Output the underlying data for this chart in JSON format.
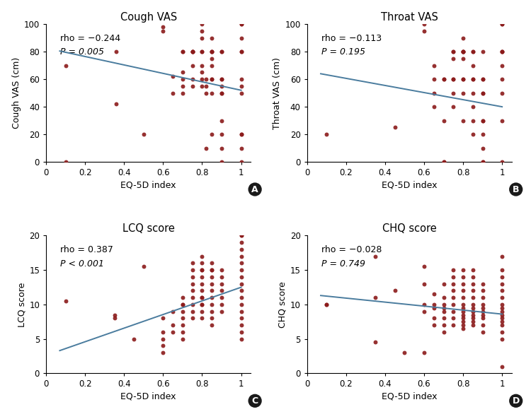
{
  "plots": [
    {
      "title": "Cough VAS",
      "xlabel": "EQ-5D index",
      "ylabel": "Cough VAS (cm)",
      "rho_text": "rho = −0.244",
      "pval_text": "P = 0.005",
      "label": "A",
      "ylim": [
        0,
        100
      ],
      "yticks": [
        0,
        20,
        40,
        60,
        80,
        100
      ],
      "xlim": [
        0,
        1.05
      ],
      "xticks": [
        0,
        0.2,
        0.4,
        0.6,
        0.8,
        1.0
      ],
      "line_x": [
        0.07,
        1.0
      ],
      "line_y": [
        80.5,
        52.0
      ],
      "scatter_x": [
        0.1,
        0.1,
        0.36,
        0.36,
        0.5,
        0.6,
        0.6,
        0.65,
        0.65,
        0.7,
        0.7,
        0.7,
        0.7,
        0.7,
        0.7,
        0.75,
        0.75,
        0.75,
        0.75,
        0.75,
        0.75,
        0.75,
        0.8,
        0.8,
        0.8,
        0.8,
        0.8,
        0.8,
        0.8,
        0.8,
        0.8,
        0.82,
        0.82,
        0.82,
        0.82,
        0.85,
        0.85,
        0.85,
        0.85,
        0.85,
        0.85,
        0.85,
        0.85,
        0.85,
        0.85,
        0.9,
        0.9,
        0.9,
        0.9,
        0.9,
        0.9,
        0.9,
        0.9,
        0.9,
        0.9,
        0.9,
        1.0,
        1.0,
        1.0,
        1.0,
        1.0,
        1.0,
        1.0,
        1.0,
        1.0,
        1.0,
        1.0,
        1.0
      ],
      "scatter_y": [
        70,
        0,
        80,
        42,
        20,
        98,
        95,
        62,
        50,
        80,
        80,
        60,
        50,
        65,
        55,
        80,
        80,
        80,
        80,
        70,
        60,
        55,
        100,
        95,
        90,
        80,
        80,
        70,
        65,
        60,
        55,
        60,
        55,
        50,
        10,
        90,
        80,
        80,
        80,
        75,
        70,
        60,
        60,
        50,
        20,
        80,
        80,
        60,
        60,
        55,
        50,
        50,
        30,
        20,
        10,
        0,
        100,
        100,
        90,
        80,
        80,
        60,
        55,
        50,
        20,
        20,
        10,
        0
      ]
    },
    {
      "title": "Throat VAS",
      "xlabel": "EQ-5D index",
      "ylabel": "Throat VAS (cm)",
      "rho_text": "rho = −0.113",
      "pval_text": "P = 0.195",
      "label": "B",
      "ylim": [
        0,
        100
      ],
      "yticks": [
        0,
        20,
        40,
        60,
        80,
        100
      ],
      "xlim": [
        0,
        1.05
      ],
      "xticks": [
        0,
        0.2,
        0.4,
        0.6,
        0.8,
        1.0
      ],
      "line_x": [
        0.07,
        1.0
      ],
      "line_y": [
        64.0,
        40.0
      ],
      "scatter_x": [
        0.1,
        0.45,
        0.6,
        0.6,
        0.65,
        0.65,
        0.65,
        0.65,
        0.7,
        0.7,
        0.7,
        0.7,
        0.7,
        0.75,
        0.75,
        0.75,
        0.75,
        0.75,
        0.75,
        0.75,
        0.8,
        0.8,
        0.8,
        0.8,
        0.8,
        0.8,
        0.8,
        0.8,
        0.8,
        0.8,
        0.85,
        0.85,
        0.85,
        0.85,
        0.85,
        0.85,
        0.85,
        0.85,
        0.85,
        0.9,
        0.9,
        0.9,
        0.9,
        0.9,
        0.9,
        0.9,
        0.9,
        0.9,
        0.9,
        0.9,
        1.0,
        1.0,
        1.0,
        1.0,
        1.0,
        1.0,
        1.0,
        1.0,
        1.0,
        1.0
      ],
      "scatter_y": [
        20,
        25,
        100,
        95,
        70,
        60,
        50,
        40,
        60,
        60,
        30,
        0,
        0,
        80,
        80,
        75,
        60,
        60,
        50,
        40,
        90,
        80,
        80,
        80,
        80,
        75,
        60,
        60,
        50,
        30,
        80,
        80,
        70,
        60,
        60,
        50,
        40,
        30,
        20,
        80,
        60,
        60,
        50,
        50,
        30,
        30,
        20,
        10,
        0,
        0,
        100,
        100,
        80,
        80,
        80,
        70,
        60,
        50,
        30,
        0
      ]
    },
    {
      "title": "LCQ score",
      "xlabel": "EQ-5D index",
      "ylabel": "LCQ score",
      "rho_text": "rho = 0.387",
      "pval_text": "P < 0.001",
      "label": "C",
      "ylim": [
        0,
        20
      ],
      "yticks": [
        0,
        5,
        10,
        15,
        20
      ],
      "xlim": [
        0,
        1.05
      ],
      "xticks": [
        0,
        0.2,
        0.4,
        0.6,
        0.8,
        1.0
      ],
      "line_x": [
        0.07,
        1.0
      ],
      "line_y": [
        3.3,
        12.5
      ],
      "scatter_x": [
        0.1,
        0.35,
        0.35,
        0.45,
        0.5,
        0.6,
        0.6,
        0.6,
        0.6,
        0.6,
        0.65,
        0.65,
        0.65,
        0.7,
        0.7,
        0.7,
        0.7,
        0.7,
        0.7,
        0.7,
        0.7,
        0.75,
        0.75,
        0.75,
        0.75,
        0.75,
        0.75,
        0.75,
        0.75,
        0.75,
        0.8,
        0.8,
        0.8,
        0.8,
        0.8,
        0.8,
        0.8,
        0.8,
        0.8,
        0.8,
        0.8,
        0.8,
        0.8,
        0.85,
        0.85,
        0.85,
        0.85,
        0.85,
        0.85,
        0.85,
        0.85,
        0.85,
        0.85,
        0.85,
        0.9,
        0.9,
        0.9,
        0.9,
        0.9,
        0.9,
        0.9,
        1.0,
        1.0,
        1.0,
        1.0,
        1.0,
        1.0,
        1.0,
        1.0,
        1.0,
        1.0,
        1.0,
        1.0,
        1.0,
        1.0,
        1.0,
        1.0,
        1.0
      ],
      "scatter_y": [
        10.5,
        8.5,
        8.0,
        5.0,
        15.5,
        8.0,
        6.0,
        5.0,
        4.0,
        3.0,
        9.0,
        7.0,
        6.0,
        11.0,
        10.0,
        10.0,
        9.0,
        8.0,
        7.0,
        6.0,
        5.0,
        16.0,
        15.0,
        14.0,
        13.0,
        12.0,
        11.0,
        10.0,
        9.0,
        8.0,
        17.0,
        16.0,
        15.0,
        15.0,
        14.0,
        13.0,
        12.0,
        11.0,
        11.0,
        10.0,
        10.0,
        9.0,
        8.0,
        16.0,
        15.0,
        15.0,
        14.0,
        13.0,
        12.0,
        11.0,
        10.0,
        9.0,
        8.0,
        7.0,
        15.0,
        14.0,
        13.0,
        12.0,
        11.0,
        10.0,
        9.0,
        20.0,
        20.0,
        19.0,
        18.0,
        17.0,
        16.0,
        15.0,
        14.0,
        13.0,
        12.0,
        11.0,
        10.0,
        9.0,
        8.0,
        7.0,
        6.0,
        5.0
      ]
    },
    {
      "title": "CHQ score",
      "xlabel": "EQ-5D index",
      "ylabel": "CHQ score",
      "rho_text": "rho = −0.028",
      "pval_text": "P = 0.749",
      "label": "D",
      "ylim": [
        0,
        20
      ],
      "yticks": [
        0,
        5,
        10,
        15,
        20
      ],
      "xlim": [
        0,
        1.05
      ],
      "xticks": [
        0,
        0.2,
        0.4,
        0.6,
        0.8,
        1.0
      ],
      "line_x": [
        0.07,
        1.0
      ],
      "line_y": [
        11.3,
        8.6
      ],
      "scatter_x": [
        0.1,
        0.1,
        0.35,
        0.35,
        0.35,
        0.45,
        0.5,
        0.6,
        0.6,
        0.6,
        0.6,
        0.6,
        0.65,
        0.65,
        0.65,
        0.65,
        0.65,
        0.7,
        0.7,
        0.7,
        0.7,
        0.7,
        0.7,
        0.7,
        0.7,
        0.75,
        0.75,
        0.75,
        0.75,
        0.75,
        0.75,
        0.75,
        0.75,
        0.75,
        0.8,
        0.8,
        0.8,
        0.8,
        0.8,
        0.8,
        0.8,
        0.8,
        0.8,
        0.8,
        0.8,
        0.8,
        0.8,
        0.85,
        0.85,
        0.85,
        0.85,
        0.85,
        0.85,
        0.85,
        0.85,
        0.85,
        0.85,
        0.85,
        0.85,
        0.9,
        0.9,
        0.9,
        0.9,
        0.9,
        0.9,
        0.9,
        0.9,
        0.9,
        0.9,
        1.0,
        1.0,
        1.0,
        1.0,
        1.0,
        1.0,
        1.0,
        1.0,
        1.0,
        1.0,
        1.0,
        1.0,
        1.0,
        1.0,
        1.0,
        1.0
      ],
      "scatter_y": [
        10.0,
        10.0,
        17.0,
        11.0,
        4.5,
        12.0,
        3.0,
        15.5,
        13.0,
        10.0,
        9.0,
        3.0,
        11.5,
        10.0,
        9.5,
        8.0,
        7.0,
        13.0,
        11.0,
        10.0,
        9.5,
        9.0,
        8.0,
        7.0,
        6.0,
        15.0,
        14.0,
        13.0,
        12.0,
        11.0,
        10.0,
        9.0,
        8.0,
        7.0,
        15.0,
        14.0,
        13.0,
        12.0,
        11.0,
        10.0,
        9.5,
        9.0,
        8.5,
        8.0,
        7.5,
        7.0,
        6.5,
        15.0,
        14.0,
        13.0,
        12.0,
        11.0,
        10.0,
        9.5,
        9.0,
        8.5,
        8.0,
        7.5,
        7.0,
        13.0,
        12.0,
        11.0,
        10.0,
        9.5,
        9.0,
        8.5,
        8.0,
        7.0,
        6.0,
        17.0,
        15.0,
        14.0,
        13.0,
        12.0,
        11.0,
        10.0,
        9.5,
        9.0,
        8.5,
        8.0,
        7.5,
        7.0,
        6.0,
        5.0,
        1.0
      ]
    }
  ],
  "dot_color": "#8B1A1A",
  "line_color": "#4a7c9e",
  "dot_size": 18,
  "dot_alpha": 0.9,
  "background_color": "#ffffff",
  "label_bg_color": "#1a1a1a",
  "font_size_title": 10.5,
  "font_size_axis_label": 9,
  "font_size_tick": 8.5,
  "font_size_annot": 9,
  "font_size_panel": 9
}
